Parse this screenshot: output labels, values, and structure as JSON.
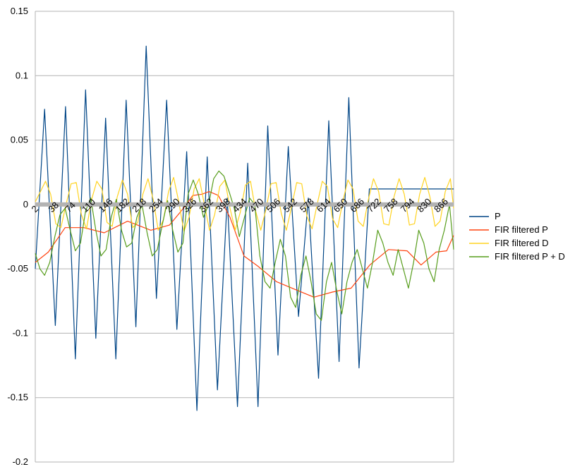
{
  "chart_data": {
    "type": "line",
    "title": "",
    "xlabel": "",
    "ylabel": "",
    "ylim": [
      -0.2,
      0.15
    ],
    "xlim": [
      2,
      900
    ],
    "grid": "horizontal",
    "legend_position": "right",
    "y_ticks": [
      "0.15",
      "0.1",
      "0.05",
      "0",
      "-0.05",
      "-0.1",
      "-0.15",
      "-0.2"
    ],
    "y_tick_values": [
      0.15,
      0.1,
      0.05,
      0,
      -0.05,
      -0.1,
      -0.15,
      -0.2
    ],
    "x_ticks": [
      "2",
      "38",
      "74",
      "110",
      "146",
      "182",
      "218",
      "254",
      "290",
      "326",
      "362",
      "398",
      "434",
      "470",
      "506",
      "542",
      "578",
      "614",
      "650",
      "686",
      "722",
      "758",
      "794",
      "830",
      "866"
    ],
    "x_tick_values": [
      2,
      38,
      74,
      110,
      146,
      182,
      218,
      254,
      290,
      326,
      362,
      398,
      434,
      470,
      506,
      542,
      578,
      614,
      650,
      686,
      722,
      758,
      794,
      830,
      866
    ],
    "series": [
      {
        "name": "P",
        "color": "#004586",
        "x": [
          2,
          22,
          45,
          67,
          88,
          110,
          132,
          153,
          175,
          197,
          218,
          240,
          262,
          284,
          306,
          327,
          349,
          371,
          393,
          414,
          436,
          458,
          480,
          501,
          523,
          545,
          567,
          588,
          610,
          632,
          654,
          675,
          697,
          719,
          741,
          762,
          784,
          806,
          828,
          849,
          871,
          900
        ],
        "y": [
          -0.05,
          0.074,
          -0.094,
          0.076,
          -0.12,
          0.089,
          -0.104,
          0.067,
          -0.12,
          0.081,
          -0.095,
          0.123,
          -0.073,
          0.081,
          -0.097,
          0.041,
          -0.16,
          0.037,
          -0.144,
          0.005,
          -0.157,
          0.032,
          -0.157,
          0.061,
          -0.117,
          0.045,
          -0.087,
          0.005,
          -0.135,
          0.065,
          -0.122,
          0.083,
          -0.127,
          0.012,
          0.012,
          0.012,
          0.012,
          0.012,
          0.012,
          0.012,
          0.012,
          0.012
        ]
      },
      {
        "name": "FIR filtered P",
        "color": "#ff420e",
        "x": [
          2,
          30,
          66,
          106,
          150,
          200,
          250,
          290,
          320,
          340,
          360,
          375,
          395,
          420,
          450,
          480,
          520,
          560,
          600,
          640,
          680,
          720,
          760,
          800,
          830,
          862,
          885,
          900
        ],
        "y": [
          -0.045,
          -0.037,
          -0.018,
          -0.018,
          -0.022,
          -0.013,
          -0.02,
          -0.016,
          -0.003,
          0.007,
          0.008,
          0.01,
          0.007,
          -0.01,
          -0.04,
          -0.048,
          -0.06,
          -0.066,
          -0.072,
          -0.068,
          -0.065,
          -0.047,
          -0.035,
          -0.036,
          -0.047,
          -0.037,
          -0.036,
          -0.024
        ]
      },
      {
        "name": "FIR filtered D",
        "color": "#ffd320",
        "x": [
          2,
          13,
          24,
          35,
          46,
          57,
          68,
          79,
          90,
          101,
          112,
          123,
          134,
          145,
          156,
          167,
          178,
          189,
          200,
          211,
          222,
          233,
          244,
          255,
          266,
          277,
          288,
          299,
          310,
          321,
          332,
          343,
          354,
          365,
          376,
          387,
          398,
          409,
          420,
          431,
          442,
          453,
          464,
          475,
          486,
          497,
          508,
          519,
          530,
          541,
          552,
          563,
          574,
          585,
          596,
          607,
          618,
          629,
          640,
          651,
          662,
          673,
          684,
          695,
          706,
          717,
          728,
          739,
          750,
          761,
          772,
          783,
          794,
          805,
          816,
          827,
          838,
          849,
          860,
          871,
          882,
          893,
          900
        ],
        "y": [
          0.002,
          0.01,
          0.018,
          0.008,
          -0.015,
          -0.018,
          0.0,
          0.016,
          0.017,
          -0.008,
          -0.019,
          0.004,
          0.018,
          0.012,
          -0.014,
          -0.017,
          0.006,
          0.019,
          0.008,
          -0.018,
          -0.014,
          0.008,
          0.02,
          0.004,
          -0.02,
          -0.012,
          0.01,
          0.021,
          0.002,
          -0.021,
          -0.01,
          0.012,
          0.02,
          0.0,
          -0.02,
          -0.008,
          0.014,
          0.019,
          -0.003,
          -0.02,
          -0.006,
          0.015,
          0.018,
          -0.005,
          -0.02,
          -0.004,
          0.016,
          0.017,
          -0.007,
          -0.02,
          -0.002,
          0.017,
          0.016,
          -0.009,
          -0.019,
          0.0,
          0.018,
          0.014,
          -0.011,
          -0.018,
          0.002,
          0.019,
          0.012,
          -0.013,
          -0.017,
          0.004,
          0.02,
          0.01,
          -0.015,
          -0.016,
          0.006,
          0.02,
          0.008,
          -0.016,
          -0.015,
          0.008,
          0.021,
          0.006,
          -0.017,
          -0.013,
          0.01,
          0.02,
          -0.003
        ]
      },
      {
        "name": "FIR filtered P + D",
        "color": "#579d1c",
        "x": [
          2,
          12,
          22,
          33,
          44,
          55,
          66,
          77,
          88,
          99,
          110,
          121,
          132,
          143,
          154,
          165,
          176,
          187,
          198,
          209,
          220,
          231,
          242,
          253,
          264,
          275,
          286,
          297,
          308,
          319,
          330,
          341,
          352,
          363,
          374,
          385,
          396,
          407,
          418,
          429,
          440,
          451,
          462,
          473,
          484,
          495,
          506,
          517,
          528,
          539,
          550,
          561,
          572,
          583,
          594,
          605,
          616,
          627,
          638,
          649,
          660,
          671,
          682,
          693,
          704,
          715,
          726,
          737,
          748,
          759,
          770,
          781,
          792,
          803,
          814,
          825,
          836,
          847,
          858,
          869,
          880,
          891,
          900
        ],
        "y": [
          -0.038,
          -0.05,
          -0.055,
          -0.045,
          -0.025,
          -0.008,
          -0.003,
          -0.02,
          -0.036,
          -0.03,
          -0.005,
          0.005,
          -0.02,
          -0.04,
          -0.035,
          -0.01,
          0.004,
          -0.02,
          -0.033,
          -0.03,
          -0.01,
          0.0,
          -0.022,
          -0.04,
          -0.035,
          -0.015,
          0.003,
          -0.02,
          -0.037,
          -0.03,
          0.008,
          0.019,
          0.008,
          -0.01,
          0.0,
          0.02,
          0.026,
          0.022,
          0.01,
          -0.003,
          -0.025,
          -0.01,
          0.005,
          0.0,
          -0.04,
          -0.06,
          -0.065,
          -0.045,
          -0.027,
          -0.04,
          -0.072,
          -0.08,
          -0.055,
          -0.04,
          -0.06,
          -0.085,
          -0.09,
          -0.06,
          -0.045,
          -0.067,
          -0.085,
          -0.06,
          -0.045,
          -0.035,
          -0.05,
          -0.065,
          -0.045,
          -0.02,
          -0.03,
          -0.045,
          -0.055,
          -0.035,
          -0.05,
          -0.065,
          -0.045,
          -0.02,
          -0.03,
          -0.05,
          -0.06,
          -0.035,
          -0.02,
          0.0,
          -0.035
        ]
      }
    ]
  }
}
